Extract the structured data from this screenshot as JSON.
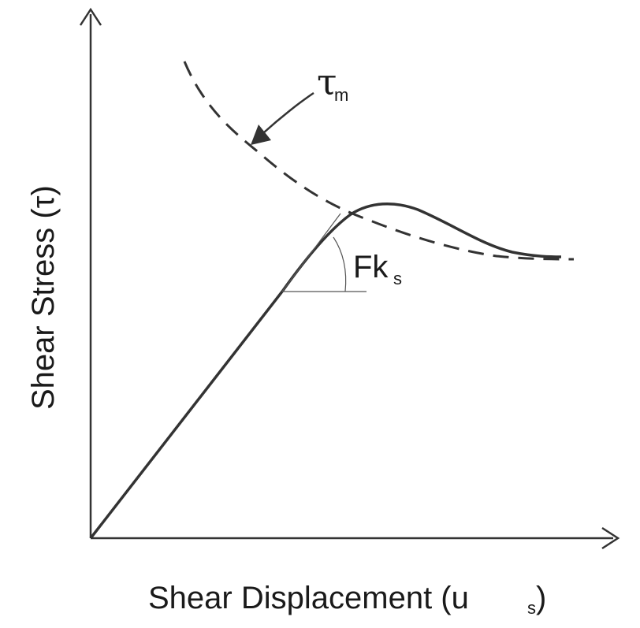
{
  "diagram": {
    "x_axis_label": "Shear Displacement (u",
    "x_axis_label_sub": "s",
    "x_axis_label_close": ")",
    "y_axis_label": "Shear Stress (τ)",
    "tau_m_symbol": "τ",
    "tau_m_subscript": "m",
    "slope_label": "Fk",
    "slope_subscript": "s"
  },
  "colors": {
    "curve": "#333333",
    "axis": "#333333",
    "thin": "#555555"
  },
  "elements": [
    "x-axis",
    "y-axis",
    "stress-displacement-curve",
    "peak-strength-envelope-dashed",
    "slope-tangent-line",
    "slope-angle-arc",
    "tau-m-arrow"
  ]
}
